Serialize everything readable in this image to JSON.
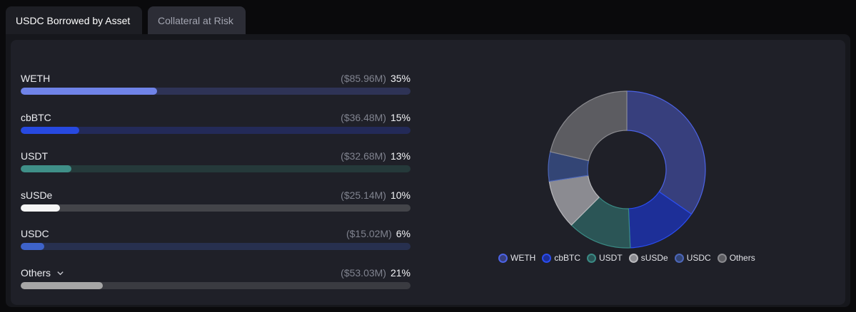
{
  "tabs": [
    {
      "label": "USDC Borrowed by Asset",
      "active": true
    },
    {
      "label": "Collateral at Risk",
      "active": false
    }
  ],
  "chart_data": {
    "type": "pie",
    "title": "",
    "categories": [
      "WETH",
      "cbBTC",
      "USDT",
      "sUSDe",
      "USDC",
      "Others"
    ],
    "series": [
      {
        "values": [
          85.96,
          36.48,
          32.68,
          25.14,
          15.02,
          53.03
        ]
      }
    ],
    "amount_labels": [
      "($85.96M)",
      "($36.48M)",
      "($32.68M)",
      "($25.14M)",
      "($15.02M)",
      "($53.03M)"
    ],
    "percent_labels": [
      "35%",
      "15%",
      "13%",
      "10%",
      "6%",
      "21%"
    ],
    "percents": [
      35,
      15,
      13,
      10,
      6,
      21
    ],
    "unit": "M USD",
    "legend_position": "bottom",
    "colors": {
      "fill": [
        "#6f83e8",
        "#2749e0",
        "#3f8f88",
        "#f5f5f5",
        "#3e63c9",
        "#a6a6a6"
      ],
      "track": [
        "#2e3356",
        "#232a58",
        "#25393a",
        "#434449",
        "#27304f",
        "#3a3b41"
      ],
      "slice": [
        "#373f7d",
        "#1d2f98",
        "#2b5556",
        "#8b8b91",
        "#334575",
        "#5c5c61"
      ],
      "slice_stroke": [
        "#4c63e6",
        "#2a4df0",
        "#3a8a84",
        "#b9b9bd",
        "#4c66b8",
        "#8a8a8f"
      ]
    }
  },
  "rows_extra": {
    "others_chevron_icon": "chevron-down-icon"
  }
}
